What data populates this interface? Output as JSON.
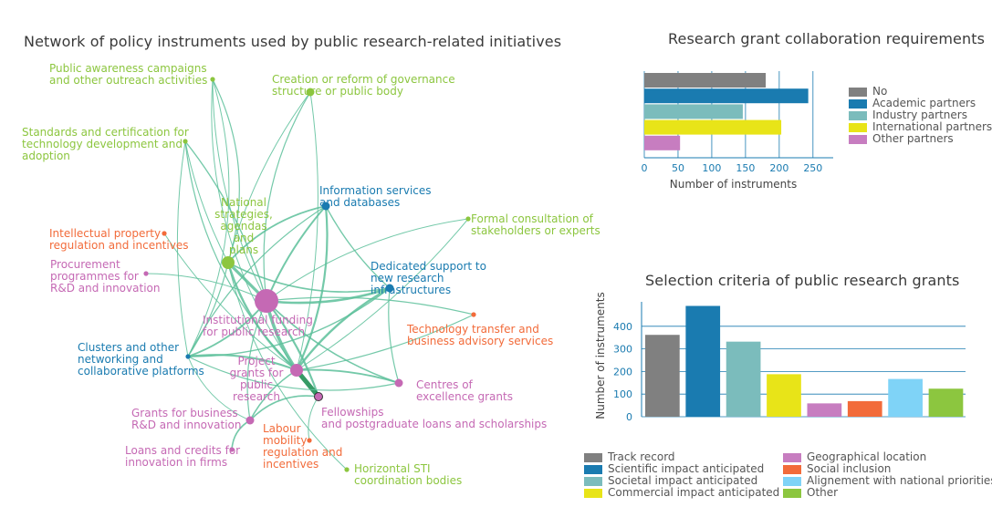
{
  "network": {
    "title": "Network of policy instruments used by public research-related initiatives",
    "nodes": [
      {
        "id": "public_awareness",
        "label": "Public awareness campaigns\nand other outreach activities",
        "category": "green",
        "size": 1
      },
      {
        "id": "governance",
        "label": "Creation or reform of governance\nstructure or public body",
        "category": "green",
        "size": 2
      },
      {
        "id": "standards",
        "label": "Standards and certification for\ntechnology development and\nadoption",
        "category": "green",
        "size": 1
      },
      {
        "id": "national_strategies",
        "label": "National\nstrategies,\nagendas\nand\nplans",
        "category": "green",
        "size": 3
      },
      {
        "id": "info_services",
        "label": "Information services\nand databases",
        "category": "blue",
        "size": 2
      },
      {
        "id": "formal_consultation",
        "label": "Formal consultation of\nstakeholders or experts",
        "category": "green",
        "size": 1
      },
      {
        "id": "ip_regulation",
        "label": "Intellectual property\nregulation and incentives",
        "category": "orange",
        "size": 1
      },
      {
        "id": "procurement",
        "label": "Procurement\nprogrammes for\nR&D and innovation",
        "category": "pink",
        "size": 1
      },
      {
        "id": "dedicated_support",
        "label": "Dedicated support to\nnew research\ninfrastructures",
        "category": "blue",
        "size": 2
      },
      {
        "id": "institutional_funding",
        "label": "Institutional funding\nfor public research",
        "category": "pink",
        "size": 5
      },
      {
        "id": "tech_transfer",
        "label": "Technology transfer and\nbusiness advisory services",
        "category": "orange",
        "size": 1
      },
      {
        "id": "clusters",
        "label": "Clusters and other\nnetworking and\ncollaborative platforms",
        "category": "blue",
        "size": 1
      },
      {
        "id": "project_grants",
        "label": "Project\ngrants for\npublic\nresearch",
        "category": "pink",
        "size": 3
      },
      {
        "id": "centres_excellence",
        "label": "Centres of\nexcellence grants",
        "category": "pink",
        "size": 2
      },
      {
        "id": "fellowships",
        "label": "Fellowships\nand postgraduate loans and scholarships",
        "category": "pink",
        "size": 2
      },
      {
        "id": "grants_business",
        "label": "Grants for business\nR&D and innovation",
        "category": "pink",
        "size": 2
      },
      {
        "id": "labour_mobility",
        "label": "Labour\nmobility\nregulation and\nincentives",
        "category": "orange",
        "size": 1
      },
      {
        "id": "loans_credits",
        "label": "Loans and credits for\ninnovation in firms",
        "category": "pink",
        "size": 1
      },
      {
        "id": "horizontal_sti",
        "label": "Horizontal STI\ncoordination bodies",
        "category": "green",
        "size": 1
      }
    ],
    "colors": {
      "green": "#8cc63f",
      "blue": "#1a7bb0",
      "orange": "#f26b3a",
      "pink": "#c569b4",
      "edge": "#5cbf9a",
      "edge_dark": "#138a4a"
    }
  },
  "chart_data": [
    {
      "type": "bar",
      "orientation": "horizontal",
      "title": "Research grant collaboration requirements",
      "xlabel": "Number of instruments",
      "categories": [
        "No",
        "Academic partners",
        "Industry partners",
        "International partners",
        "Other partners"
      ],
      "values": [
        180,
        243,
        146,
        203,
        53
      ],
      "colors": [
        "#808080",
        "#1a7bb0",
        "#7bbcbc",
        "#e8e418",
        "#c77dc0"
      ],
      "xlim": [
        0,
        280
      ],
      "xticks": [
        0,
        50,
        100,
        150,
        200,
        250
      ],
      "legend": [
        "No",
        "Academic partners",
        "Industry partners",
        "International partners",
        "Other partners"
      ],
      "legend_position": "right",
      "grid": true
    },
    {
      "type": "bar",
      "title": "Selection criteria of public research grants",
      "ylabel": "Number of instruments",
      "categories": [
        "Track record",
        "Scientific impact anticipated",
        "Societal impact anticipated",
        "Commercial impact anticipated",
        "Geographical location",
        "Social inclusion",
        "Alignement with national priorities",
        "Other"
      ],
      "values": [
        362,
        490,
        332,
        188,
        59,
        69,
        167,
        124
      ],
      "colors": [
        "#808080",
        "#1a7bb0",
        "#7bbcbc",
        "#e8e418",
        "#c77dc0",
        "#f26b3a",
        "#7fd3f7",
        "#8cc63f"
      ],
      "ylim": [
        0,
        500
      ],
      "yticks": [
        0,
        100,
        200,
        300,
        400
      ],
      "legend": [
        "Track record",
        "Scientific impact anticipated",
        "Societal impact anticipated",
        "Commercial impact anticipated",
        "Geographical location",
        "Social inclusion",
        "Alignement with national priorities",
        "Other"
      ],
      "legend_position": "bottom",
      "grid": true
    }
  ]
}
